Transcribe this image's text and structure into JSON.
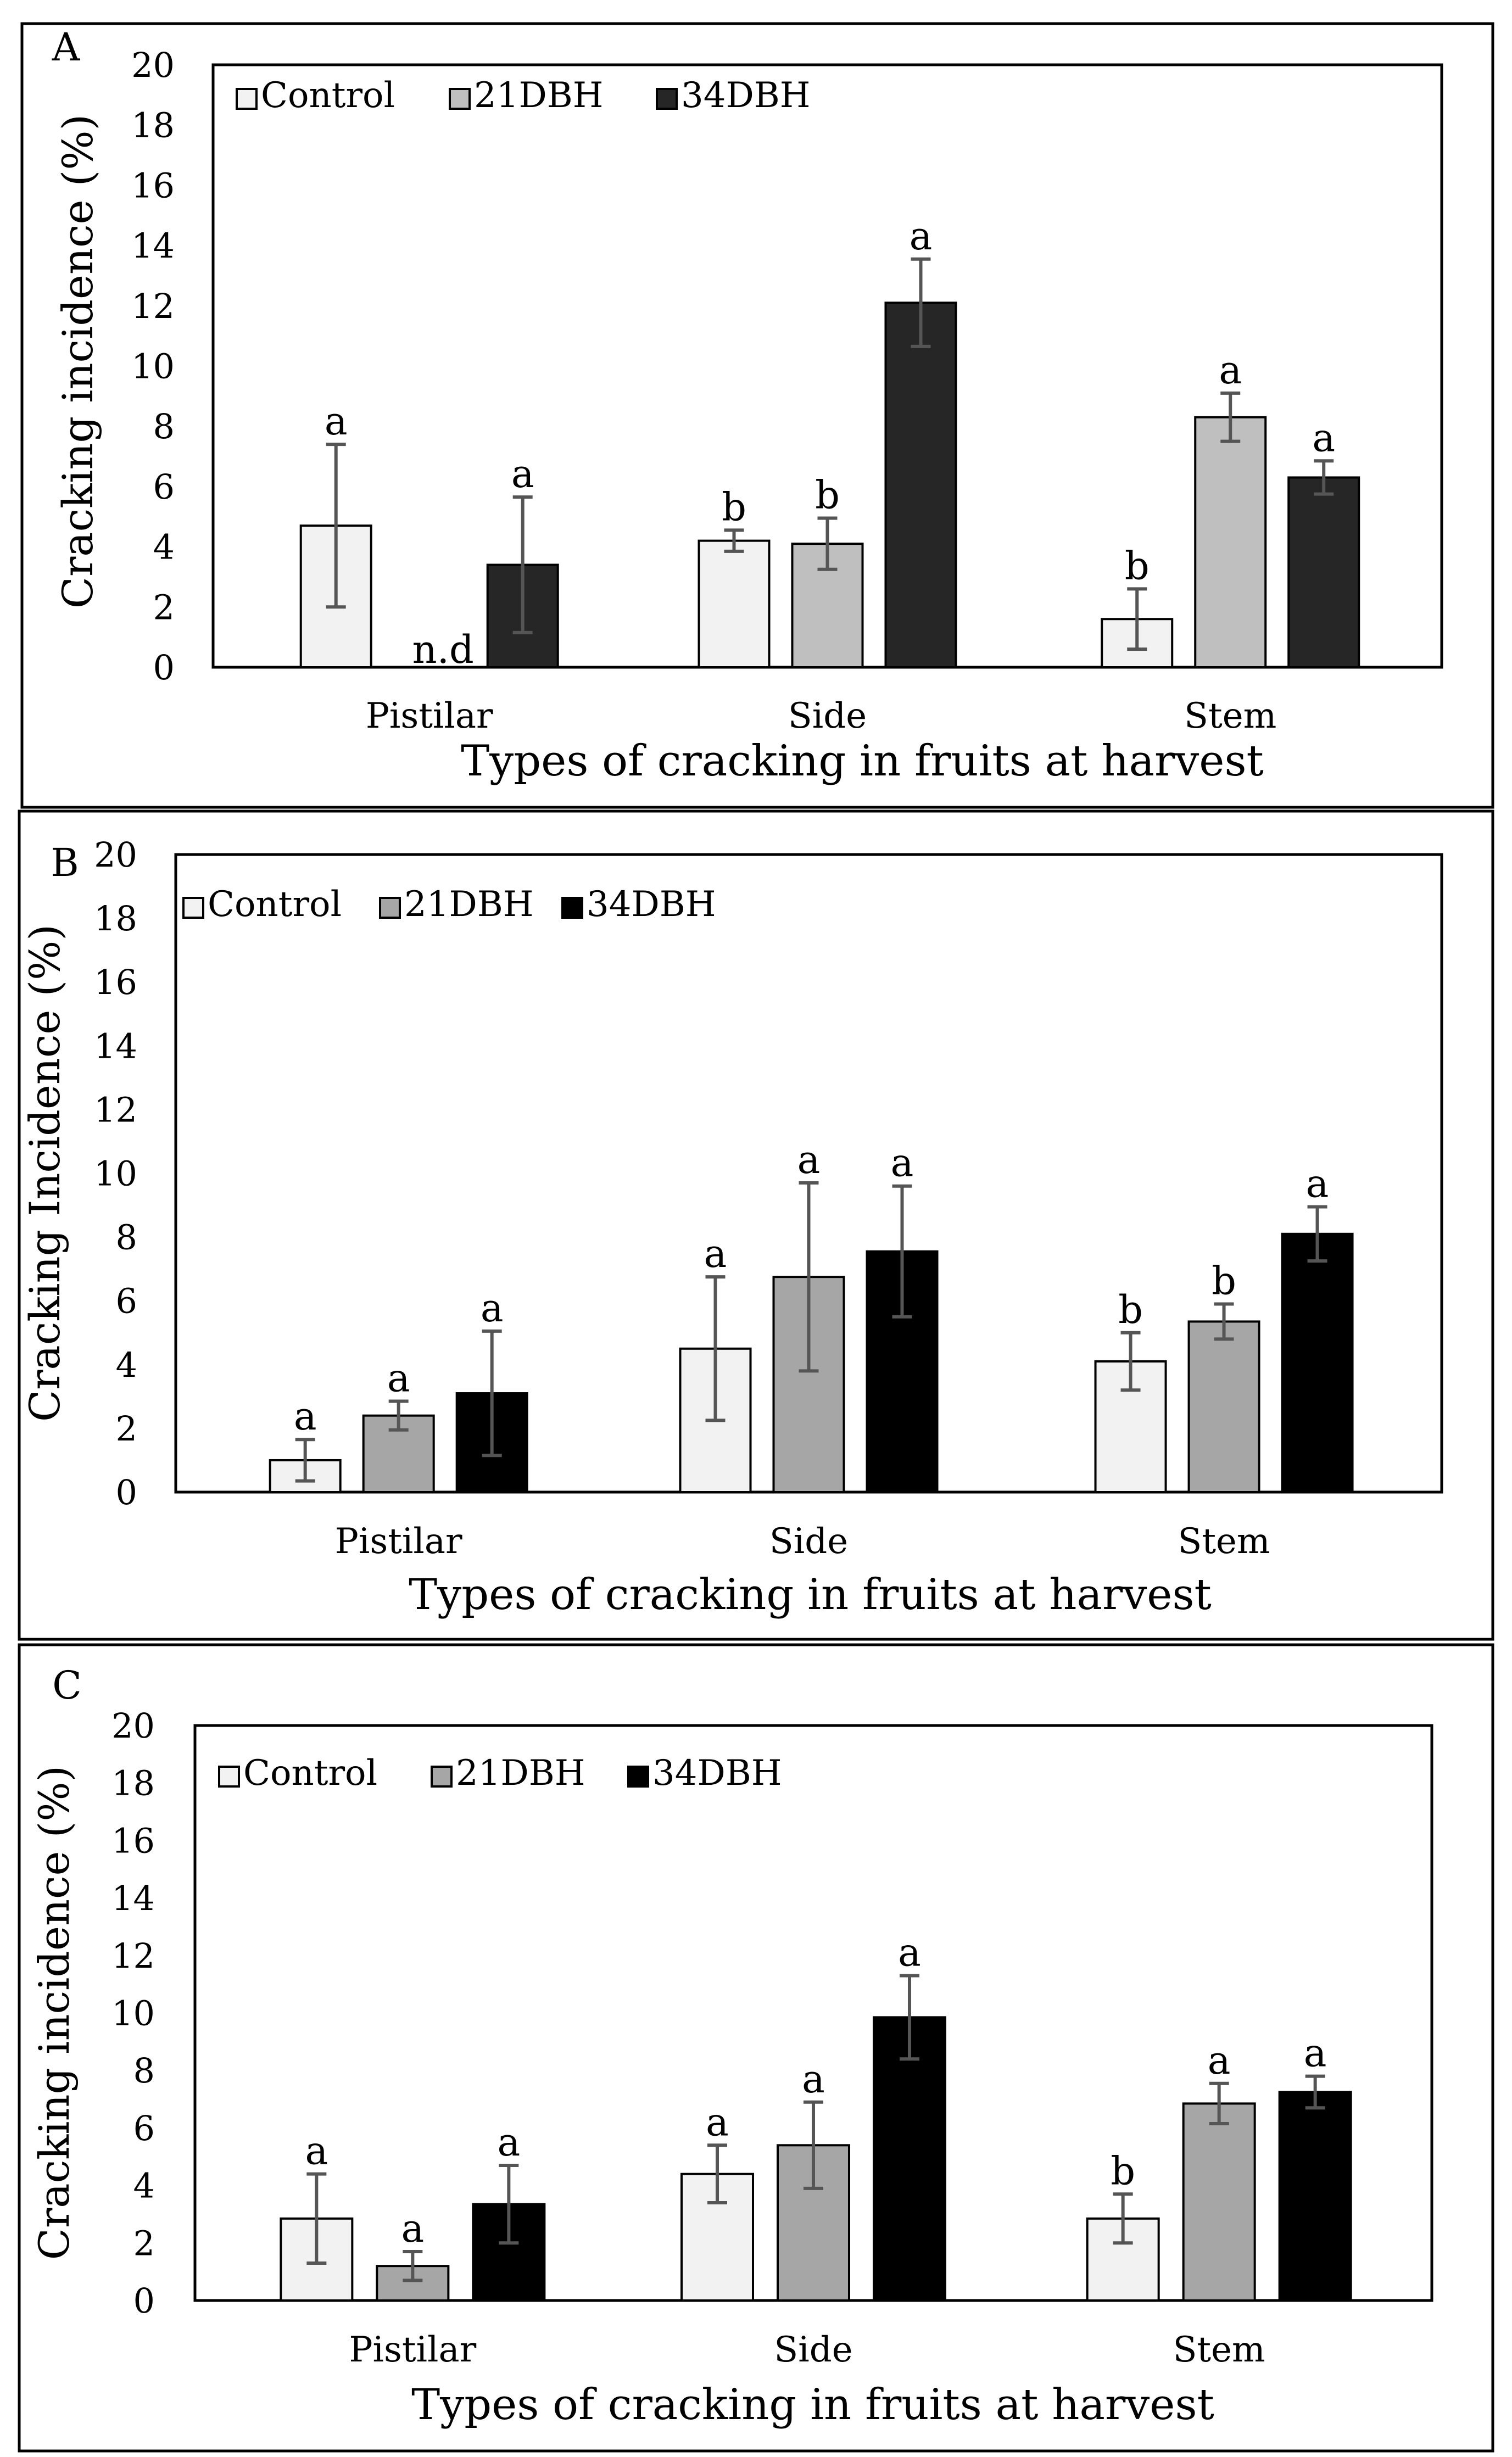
{
  "figure": {
    "panels": [
      "A",
      "B",
      "C"
    ]
  },
  "chart_data": [
    {
      "panel_label": "A",
      "type": "bar",
      "title": "",
      "xlabel": "Types of cracking in fruits at harvest",
      "ylabel": "Cracking incidence (%)",
      "ylim": [
        0,
        20
      ],
      "yticks": [
        "0",
        "2",
        "4",
        "6",
        "8",
        "10",
        "12",
        "14",
        "16",
        "18",
        "20"
      ],
      "grid": false,
      "legend_position": "top-left",
      "categories": [
        "Pistilar",
        "Side",
        "Stem"
      ],
      "series": [
        {
          "name": "Control",
          "color": "#f2f2f2",
          "values": [
            4.7,
            4.2,
            1.6
          ],
          "errors": [
            2.7,
            0.35,
            1.0
          ],
          "letters": [
            "a",
            "b",
            "b"
          ]
        },
        {
          "name": "21DBH",
          "color": "#bfbfbf",
          "values": [
            0,
            4.1,
            8.3
          ],
          "errors": [
            0,
            0.85,
            0.8
          ],
          "letters": [
            "n.d",
            "b",
            "a"
          ]
        },
        {
          "name": "34DBH",
          "color": "#262626",
          "values": [
            3.4,
            12.1,
            6.3
          ],
          "errors": [
            2.25,
            1.45,
            0.55
          ],
          "letters": [
            "a",
            "a",
            "a"
          ]
        }
      ]
    },
    {
      "panel_label": "B",
      "type": "bar",
      "title": "",
      "xlabel": "Types of cracking in fruits at harvest",
      "ylabel": "Cracking Incidence (%)",
      "ylim": [
        0,
        20
      ],
      "yticks": [
        "0",
        "2",
        "4",
        "6",
        "8",
        "10",
        "12",
        "14",
        "16",
        "18",
        "20"
      ],
      "grid": false,
      "legend_position": "top-left",
      "categories": [
        "Pistilar",
        "Side",
        "Stem"
      ],
      "series": [
        {
          "name": "Control",
          "color": "#f2f2f2",
          "values": [
            1.0,
            4.5,
            4.1
          ],
          "errors": [
            0.65,
            2.25,
            0.9
          ],
          "letters": [
            "a",
            "a",
            "b"
          ]
        },
        {
          "name": "21DBH",
          "color": "#a6a6a6",
          "values": [
            2.4,
            6.75,
            5.35
          ],
          "errors": [
            0.45,
            2.95,
            0.55
          ],
          "letters": [
            "a",
            "a",
            "b"
          ]
        },
        {
          "name": "34DBH",
          "color": "#000000",
          "values": [
            3.1,
            7.55,
            8.1
          ],
          "errors": [
            1.95,
            2.05,
            0.85
          ],
          "letters": [
            "a",
            "a",
            "a"
          ]
        }
      ]
    },
    {
      "panel_label": "C",
      "type": "bar",
      "title": "",
      "xlabel": "Types of cracking in fruits at harvest",
      "ylabel": "Cracking incidence (%)",
      "ylim": [
        0,
        20
      ],
      "yticks": [
        "0",
        "2",
        "4",
        "6",
        "8",
        "10",
        "12",
        "14",
        "16",
        "18",
        "20"
      ],
      "grid": false,
      "legend_position": "top-left",
      "categories": [
        "Pistilar",
        "Side",
        "Stem"
      ],
      "series": [
        {
          "name": "Control",
          "color": "#f2f2f2",
          "values": [
            2.85,
            4.4,
            2.85
          ],
          "errors": [
            1.55,
            1.0,
            0.85
          ],
          "letters": [
            "a",
            "a",
            "b"
          ]
        },
        {
          "name": "21DBH",
          "color": "#a6a6a6",
          "values": [
            1.2,
            5.4,
            6.85
          ],
          "errors": [
            0.5,
            1.5,
            0.7
          ],
          "letters": [
            "a",
            "a",
            "a"
          ]
        },
        {
          "name": "34DBH",
          "color": "#000000",
          "values": [
            3.35,
            9.85,
            7.25
          ],
          "errors": [
            1.35,
            1.45,
            0.55
          ],
          "letters": [
            "a",
            "a",
            "a"
          ]
        }
      ]
    }
  ]
}
